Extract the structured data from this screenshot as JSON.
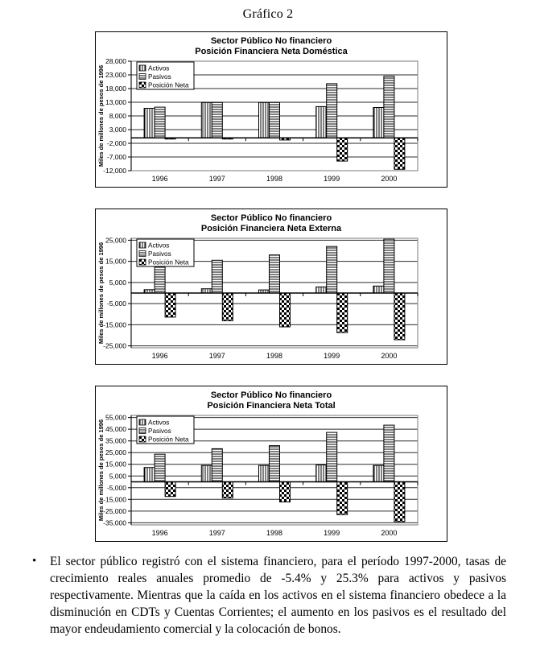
{
  "page": {
    "title": "Gráfico 2",
    "bullet": "•",
    "paragraph": "El sector público registró con el sistema financiero, para el período 1997-2000, tasas de crecimiento reales anuales promedio de -5.4% y 25.3% para activos y pasivos respectivamente. Mientras que la caída en los activos en el sistema financiero obedece a la disminución en CDTs y Cuentas Corrientes; el aumento en los pasivos es el resultado del mayor endeudamiento comercial y la colocación de bonos."
  },
  "chart_data": [
    {
      "type": "bar",
      "title": "Sector Público No financiero",
      "subtitle": "Posición Financiera Neta Doméstica",
      "ylabel": "Miles de millones de pesos de 1996",
      "categories": [
        "1996",
        "1997",
        "1998",
        "1999",
        "2000"
      ],
      "series": [
        {
          "name": "Activos",
          "pattern": "vstripe",
          "values": [
            10800,
            12900,
            12900,
            11400,
            11100
          ]
        },
        {
          "name": "Pasivos",
          "pattern": "hstripe",
          "values": [
            11200,
            12900,
            12900,
            19800,
            22500
          ]
        },
        {
          "name": "Posición Neta",
          "pattern": "checker",
          "values": [
            -400,
            -300,
            -800,
            -8500,
            -11500
          ]
        }
      ],
      "ylim": [
        -12000,
        28000
      ],
      "yticks": [
        28000,
        23000,
        18000,
        13000,
        8000,
        3000,
        -2000,
        -7000,
        -12000
      ],
      "range_pad": 0,
      "grid": true,
      "legend_position": "top-left"
    },
    {
      "type": "bar",
      "title": "Sector Público No financiero",
      "subtitle": "Posición Financiera Neta Externa",
      "ylabel": "Miles de millones de pesos de 1996",
      "categories": [
        "1996",
        "1997",
        "1998",
        "1999",
        "2000"
      ],
      "series": [
        {
          "name": "Activos",
          "pattern": "vstripe",
          "values": [
            1600,
            2000,
            1500,
            2900,
            3300
          ]
        },
        {
          "name": "Pasivos",
          "pattern": "hstripe",
          "values": [
            13500,
            15500,
            18000,
            22000,
            25500
          ]
        },
        {
          "name": "Posición Neta",
          "pattern": "checker",
          "values": [
            -11400,
            -13100,
            -16000,
            -18700,
            -22100
          ]
        }
      ],
      "ylim": [
        -25000,
        25000
      ],
      "yticks": [
        25000,
        15000,
        5000,
        -5000,
        -15000,
        -25000
      ],
      "range_pad": 900,
      "grid": true,
      "legend_position": "top-left"
    },
    {
      "type": "bar",
      "title": "Sector Público No financiero",
      "subtitle": "Posición Financiera Neta Total",
      "ylabel": "Miles de millones de pesos de 1996",
      "categories": [
        "1996",
        "1997",
        "1998",
        "1999",
        "2000"
      ],
      "series": [
        {
          "name": "Activos",
          "pattern": "vstripe",
          "values": [
            12300,
            14000,
            14000,
            14500,
            14000
          ]
        },
        {
          "name": "Pasivos",
          "pattern": "hstripe",
          "values": [
            23600,
            28300,
            30900,
            42300,
            48500
          ]
        },
        {
          "name": "Posición Neta",
          "pattern": "checker",
          "values": [
            -12500,
            -13800,
            -17200,
            -28000,
            -34000
          ]
        }
      ],
      "ylim": [
        -35000,
        55000
      ],
      "yticks": [
        55000,
        45000,
        35000,
        25000,
        15000,
        5000,
        -5000,
        -15000,
        -25000,
        -35000
      ],
      "range_pad": 1800,
      "grid": true,
      "legend_position": "top-left"
    }
  ]
}
